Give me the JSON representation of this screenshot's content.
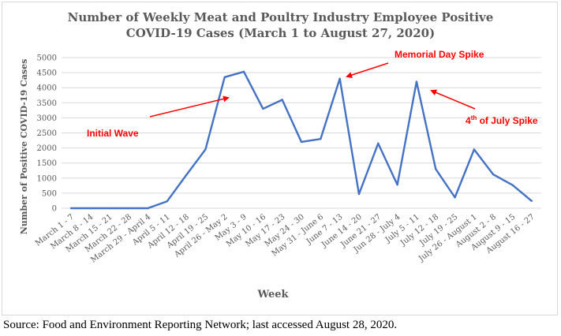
{
  "chart_data": {
    "type": "line",
    "title_line1": "Number of Weekly Meat and Poultry Industry Employee Positive",
    "title_line2": "COVID-19 Cases (March 1 to August 27, 2020)",
    "xlabel": "Week",
    "ylabel": "Number of Positive COVID-19 Cases",
    "ylim": [
      0,
      5000
    ],
    "yticks": [
      "0",
      "500",
      "1000",
      "1500",
      "2000",
      "2500",
      "3000",
      "3500",
      "4000",
      "4500",
      "5000"
    ],
    "grid": true,
    "line_color": "#4472c4",
    "annotation_color": "#ff0000",
    "categories": [
      "March 1 - 7",
      "March 8 - 14",
      "March 15 - 21",
      "March 22 - 28",
      "March 29 - April 4",
      "April 5 - 11",
      "April 12 - 18",
      "April 19 - 25",
      "April 26 - May 2",
      "May 3 - 9",
      "May 10 - 16",
      "May 17 - 23",
      "May 24 - 30",
      "May 31 - June 6",
      "June 7 - 13",
      "June 14 - 20",
      "June 21 - 27",
      "Jun 28 - July 4",
      "July 5 - 11",
      "July 12 - 18",
      "July 19 - 25",
      "July 26 - August 1",
      "August 2 - 8",
      "August 9 - 15",
      "August 16 - 27"
    ],
    "values": [
      0,
      0,
      0,
      0,
      0,
      230,
      1100,
      1950,
      4350,
      4530,
      3300,
      3600,
      2200,
      2300,
      4300,
      470,
      2150,
      780,
      4200,
      1300,
      360,
      1950,
      1120,
      770,
      240
    ],
    "annotations": [
      {
        "text": "Initial Wave"
      },
      {
        "text": "Memorial Day Spike"
      },
      {
        "text_main": "4",
        "text_sup": "th",
        "text_rest": " of July Spike"
      }
    ]
  },
  "source_note": "Source: Food and Environment Reporting Network; last accessed August 28, 2020."
}
